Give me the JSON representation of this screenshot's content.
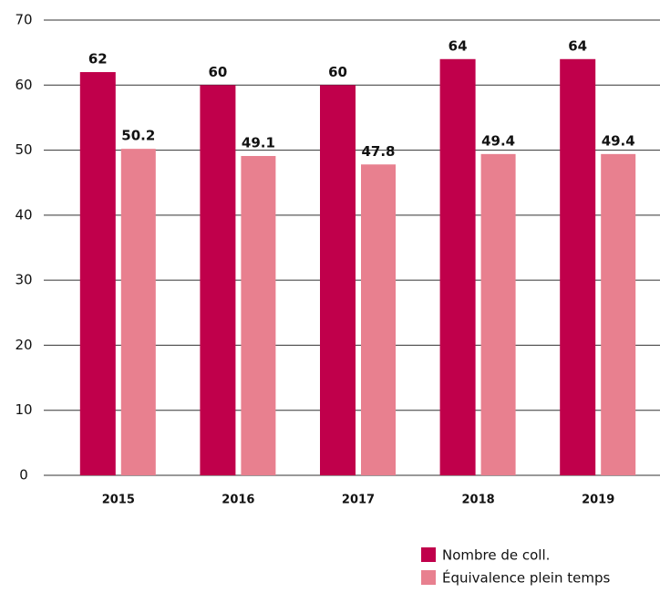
{
  "chart_data": {
    "type": "bar",
    "categories": [
      "2015",
      "2016",
      "2017",
      "2018",
      "2019"
    ],
    "series": [
      {
        "name": "Nombre de coll.",
        "color": "#c0004b",
        "values": [
          62,
          60,
          60,
          64,
          64
        ]
      },
      {
        "name": "Équivalence plein temps",
        "color": "#e8808f",
        "values": [
          50.2,
          49.1,
          47.8,
          49.4,
          49.4
        ]
      }
    ],
    "ylim": [
      0,
      70
    ],
    "yticks": [
      0,
      10,
      20,
      30,
      40,
      50,
      60,
      70
    ],
    "grid": true,
    "legend": "bottom-right"
  }
}
